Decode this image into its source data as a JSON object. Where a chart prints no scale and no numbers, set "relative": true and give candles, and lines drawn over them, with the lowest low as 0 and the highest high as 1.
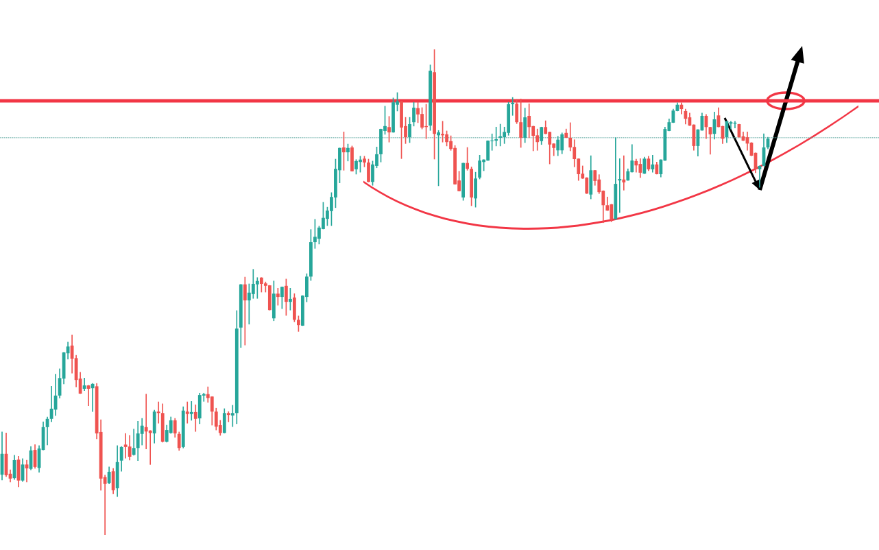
{
  "chart_data": {
    "type": "candlestick",
    "relative": true,
    "categories": [
      null,
      null,
      null,
      null,
      null,
      null,
      null,
      null,
      null,
      null,
      null,
      null,
      null,
      null,
      null,
      null,
      null,
      null,
      null,
      null,
      null,
      null,
      null,
      null,
      null,
      null,
      null,
      null,
      null,
      null,
      null,
      null,
      null,
      null,
      null,
      null,
      null,
      null,
      null,
      null,
      null,
      null,
      null,
      null,
      null,
      null,
      null,
      null,
      null,
      null,
      null,
      null,
      null,
      null,
      null,
      null,
      null,
      null,
      null,
      null,
      null,
      null,
      null,
      null,
      null,
      null,
      null,
      null,
      null,
      null,
      null,
      null,
      null,
      null,
      null,
      null,
      null,
      null,
      null,
      null,
      null,
      null,
      null,
      null,
      null,
      null,
      null,
      null,
      null,
      null,
      null,
      null,
      null,
      null,
      null,
      null,
      null,
      null,
      null,
      null,
      null,
      null,
      null,
      null,
      null,
      null,
      null,
      null,
      null,
      null,
      null,
      null,
      null,
      null,
      null,
      null,
      null,
      null,
      null,
      null,
      null,
      null,
      null,
      null,
      null,
      null,
      null,
      null,
      null,
      null,
      null,
      null,
      null,
      null,
      null,
      null,
      null,
      null,
      null,
      null,
      null,
      null,
      null,
      null,
      null,
      null,
      null,
      null,
      null,
      null,
      null,
      null,
      null,
      null,
      null,
      null,
      null,
      null,
      null,
      null,
      null,
      null,
      null,
      null,
      null,
      null,
      null,
      null,
      null,
      null,
      null,
      null,
      null,
      null,
      null,
      null,
      null,
      null,
      null,
      null,
      null,
      null,
      null,
      null,
      null,
      null,
      null
    ],
    "ohlc": [
      [
        0.124,
        0.212,
        0.113,
        0.167
      ],
      [
        0.167,
        0.21,
        0.12,
        0.123
      ],
      [
        0.126,
        0.134,
        0.109,
        0.116
      ],
      [
        0.117,
        0.164,
        0.114,
        0.154
      ],
      [
        0.155,
        0.162,
        0.099,
        0.112
      ],
      [
        0.112,
        0.157,
        0.11,
        0.145
      ],
      [
        0.145,
        0.154,
        0.109,
        0.137
      ],
      [
        0.136,
        0.182,
        0.134,
        0.174
      ],
      [
        0.175,
        0.186,
        0.137,
        0.14
      ],
      [
        0.138,
        0.184,
        0.129,
        0.178
      ],
      [
        0.175,
        0.233,
        0.175,
        0.222
      ],
      [
        0.222,
        0.243,
        0.185,
        0.239
      ],
      [
        0.239,
        0.306,
        0.233,
        0.26
      ],
      [
        0.258,
        0.331,
        0.246,
        0.287
      ],
      [
        0.287,
        0.342,
        0.282,
        0.323
      ],
      [
        0.322,
        0.376,
        0.311,
        0.376
      ],
      [
        0.374,
        0.397,
        0.362,
        0.388
      ],
      [
        0.39,
        0.412,
        0.333,
        0.363
      ],
      [
        0.364,
        0.37,
        0.305,
        0.319
      ],
      [
        0.322,
        0.335,
        0.291,
        0.291
      ],
      [
        0.301,
        0.323,
        0.297,
        0.308
      ],
      [
        0.308,
        0.308,
        0.266,
        0.301
      ],
      [
        0.302,
        0.312,
        0.254,
        0.311
      ],
      [
        0.306,
        0.312,
        0.198,
        0.209
      ],
      [
        0.212,
        0.237,
        0.092,
        0.116
      ],
      [
        0.119,
        0.123,
        0,
        0.105
      ],
      [
        0.107,
        0.14,
        0.105,
        0.13
      ],
      [
        0.131,
        0.137,
        0.085,
        0.092
      ],
      [
        0.096,
        0.184,
        0.079,
        0.15
      ],
      [
        0.153,
        0.182,
        0.131,
        0.181
      ],
      [
        0.186,
        0.209,
        0.158,
        0.181
      ],
      [
        0.182,
        0.205,
        0.154,
        0.161
      ],
      [
        0.165,
        0.218,
        0.164,
        0.179
      ],
      [
        0.179,
        0.234,
        0.153,
        0.209
      ],
      [
        0.208,
        0.24,
        0.185,
        0.225
      ],
      [
        0.222,
        0.29,
        0.177,
        0.213
      ],
      [
        0.215,
        0.215,
        0.145,
        0.21
      ],
      [
        0.209,
        0.257,
        0.189,
        0.254
      ],
      [
        0.254,
        0.274,
        0.23,
        0.251
      ],
      [
        0.251,
        0.27,
        0.191,
        0.192
      ],
      [
        0.192,
        0.226,
        0.191,
        0.216
      ],
      [
        0.21,
        0.243,
        0.209,
        0.236
      ],
      [
        0.236,
        0.24,
        0.201,
        0.209
      ],
      [
        0.208,
        0.212,
        0.174,
        0.179
      ],
      [
        0.181,
        0.264,
        0.179,
        0.256
      ],
      [
        0.254,
        0.274,
        0.23,
        0.249
      ],
      [
        0.249,
        0.275,
        0.236,
        0.253
      ],
      [
        0.253,
        0.268,
        0.213,
        0.239
      ],
      [
        0.24,
        0.292,
        0.229,
        0.288
      ],
      [
        0.287,
        0.292,
        0.275,
        0.29
      ],
      [
        0.29,
        0.305,
        0.273,
        0.282
      ],
      [
        0.285,
        0.285,
        0.226,
        0.254
      ],
      [
        0.254,
        0.261,
        0.216,
        0.223
      ],
      [
        0.226,
        0.236,
        0.205,
        0.21
      ],
      [
        0.21,
        0.26,
        0.21,
        0.251
      ],
      [
        0.251,
        0.254,
        0.233,
        0.247
      ],
      [
        0.246,
        0.267,
        0.223,
        0.251
      ],
      [
        0.251,
        0.462,
        0.229,
        0.425
      ],
      [
        0.427,
        0.516,
        0.386,
        0.516
      ],
      [
        0.516,
        0.531,
        0.391,
        0.483
      ],
      [
        0.483,
        0.517,
        0.434,
        0.499
      ],
      [
        0.496,
        0.547,
        0.487,
        0.517
      ],
      [
        0.516,
        0.53,
        0.487,
        0.523
      ],
      [
        0.53,
        0.53,
        0.5,
        0.517
      ],
      [
        0.518,
        0.521,
        0.5,
        0.513
      ],
      [
        0.514,
        0.514,
        0.463,
        0.463
      ],
      [
        0.446,
        0.523,
        0.441,
        0.497
      ],
      [
        0.497,
        0.508,
        0.473,
        0.49
      ],
      [
        0.49,
        0.511,
        0.466,
        0.511
      ],
      [
        0.513,
        0.527,
        0.452,
        0.48
      ],
      [
        0.48,
        0.508,
        0.463,
        0.486
      ],
      [
        0.489,
        0.497,
        0.439,
        0.443
      ],
      [
        0.443,
        0.451,
        0.419,
        0.432
      ],
      [
        0.431,
        0.493,
        0.431,
        0.493
      ],
      [
        0.49,
        0.538,
        0.48,
        0.532
      ],
      [
        0.532,
        0.629,
        0.524,
        0.603
      ],
      [
        0.603,
        0.65,
        0.59,
        0.614
      ],
      [
        0.61,
        0.636,
        0.599,
        0.633
      ],
      [
        0.63,
        0.685,
        0.63,
        0.653
      ],
      [
        0.651,
        0.675,
        0.637,
        0.668
      ],
      [
        0.667,
        0.705,
        0.637,
        0.696
      ],
      [
        0.695,
        0.774,
        0.674,
        0.754
      ],
      [
        0.751,
        0.797,
        0.725,
        0.797
      ],
      [
        0.798,
        0.83,
        0.751,
        0.788
      ],
      [
        0.788,
        0.805,
        0.77,
        0.797
      ],
      [
        0.798,
        0.801,
        0.749,
        0.749
      ],
      [
        0.753,
        0.773,
        0.743,
        0.77
      ],
      [
        0.768,
        0.78,
        0.747,
        0.773
      ],
      [
        0.775,
        0.78,
        0.758,
        0.767
      ],
      [
        0.767,
        0.774,
        0.727,
        0.727
      ],
      [
        0.727,
        0.77,
        0.72,
        0.763
      ],
      [
        0.76,
        0.799,
        0.756,
        0.784
      ],
      [
        0.784,
        0.836,
        0.768,
        0.836
      ],
      [
        0.832,
        0.883,
        0.825,
        0.842
      ],
      [
        0.84,
        0.862,
        0.809,
        0.829
      ],
      [
        0.829,
        0.9,
        0.829,
        0.891
      ],
      [
        0.886,
        0.911,
        0.873,
        0.893
      ],
      [
        0.893,
        0.893,
        0.775,
        0.839
      ],
      [
        0.842,
        0.86,
        0.806,
        0.819
      ],
      [
        0.819,
        0.86,
        0.808,
        0.846
      ],
      [
        0.85,
        0.891,
        0.842,
        0.88
      ],
      [
        0.879,
        0.891,
        0.849,
        0.866
      ],
      [
        0.867,
        0.88,
        0.836,
        0.839
      ],
      [
        0.842,
        0.887,
        0.816,
        0.84
      ],
      [
        0.843,
        0.968,
        0.833,
        0.956
      ],
      [
        0.953,
        1,
        0.774,
        0.826
      ],
      [
        0.823,
        0.833,
        0.719,
        0.829
      ],
      [
        0.826,
        0.852,
        0.809,
        0.823
      ],
      [
        0.825,
        0.832,
        0.801,
        0.809
      ],
      [
        0.811,
        0.822,
        0.792,
        0.795
      ],
      [
        0.797,
        0.802,
        0.722,
        0.722
      ],
      [
        0.73,
        0.749,
        0.708,
        0.708
      ],
      [
        0.695,
        0.766,
        0.689,
        0.766
      ],
      [
        0.766,
        0.798,
        0.751,
        0.754
      ],
      [
        0.754,
        0.758,
        0.678,
        0.695
      ],
      [
        0.693,
        0.747,
        0.675,
        0.734
      ],
      [
        0.736,
        0.782,
        0.733,
        0.771
      ],
      [
        0.768,
        0.773,
        0.75,
        0.773
      ],
      [
        0.771,
        0.812,
        0.771,
        0.812
      ],
      [
        0.811,
        0.826,
        0.792,
        0.812
      ],
      [
        0.812,
        0.84,
        0.801,
        0.815
      ],
      [
        0.818,
        0.846,
        0.801,
        0.821
      ],
      [
        0.819,
        0.84,
        0.806,
        0.83
      ],
      [
        0.828,
        0.891,
        0.823,
        0.887
      ],
      [
        0.887,
        0.901,
        0.864,
        0.89
      ],
      [
        0.888,
        0.897,
        0.847,
        0.85
      ],
      [
        0.85,
        0.898,
        0.798,
        0.818
      ],
      [
        0.818,
        0.879,
        0.808,
        0.86
      ],
      [
        0.863,
        0.888,
        0.818,
        0.84
      ],
      [
        0.842,
        0.842,
        0.791,
        0.822
      ],
      [
        0.823,
        0.836,
        0.792,
        0.809
      ],
      [
        0.811,
        0.84,
        0.804,
        0.84
      ],
      [
        0.84,
        0.853,
        0.826,
        0.826
      ],
      [
        0.83,
        0.83,
        0.764,
        0.804
      ],
      [
        0.806,
        0.806,
        0.781,
        0.797
      ],
      [
        0.792,
        0.821,
        0.781,
        0.814
      ],
      [
        0.792,
        0.828,
        0.785,
        0.825
      ],
      [
        0.828,
        0.836,
        0.818,
        0.818
      ],
      [
        0.818,
        0.849,
        0.791,
        0.798
      ],
      [
        0.799,
        0.814,
        0.758,
        0.774
      ],
      [
        0.775,
        0.775,
        0.73,
        0.743
      ],
      [
        0.744,
        0.76,
        0.734,
        0.734
      ],
      [
        0.736,
        0.736,
        0.703,
        0.703
      ],
      [
        0.701,
        0.781,
        0.692,
        0.751
      ],
      [
        0.751,
        0.751,
        0.72,
        0.729
      ],
      [
        0.732,
        0.742,
        0.703,
        0.706
      ],
      [
        0.709,
        0.709,
        0.643,
        0.679
      ],
      [
        0.679,
        0.696,
        0.668,
        0.668
      ],
      [
        0.681,
        0.681,
        0.645,
        0.65
      ],
      [
        0.65,
        0.818,
        0.65,
        0.723
      ],
      [
        0.73,
        0.775,
        0.664,
        0.733
      ],
      [
        0.732,
        0.781,
        0.71,
        0.726
      ],
      [
        0.73,
        0.754,
        0.73,
        0.749
      ],
      [
        0.747,
        0.804,
        0.747,
        0.771
      ],
      [
        0.77,
        0.774,
        0.747,
        0.761
      ],
      [
        0.764,
        0.775,
        0.736,
        0.746
      ],
      [
        0.744,
        0.778,
        0.744,
        0.775
      ],
      [
        0.775,
        0.78,
        0.75,
        0.753
      ],
      [
        0.753,
        0.782,
        0.747,
        0.763
      ],
      [
        0.763,
        0.768,
        0.743,
        0.743
      ],
      [
        0.743,
        0.773,
        0.737,
        0.773
      ],
      [
        0.771,
        0.84,
        0.771,
        0.836
      ],
      [
        0.832,
        0.857,
        0.832,
        0.85
      ],
      [
        0.849,
        0.877,
        0.849,
        0.874
      ],
      [
        0.873,
        0.89,
        0.873,
        0.886
      ],
      [
        0.886,
        0.89,
        0.867,
        0.877
      ],
      [
        0.873,
        0.877,
        0.846,
        0.857
      ],
      [
        0.86,
        0.869,
        0.843,
        0.843
      ],
      [
        0.845,
        0.845,
        0.792,
        0.801
      ],
      [
        0.801,
        0.835,
        0.78,
        0.835
      ],
      [
        0.833,
        0.869,
        0.833,
        0.863
      ],
      [
        0.863,
        0.866,
        0.816,
        0.84
      ],
      [
        0.84,
        0.84,
        0.784,
        0.825
      ],
      [
        0.826,
        0.871,
        0.815,
        0.856
      ],
      [
        0.864,
        0.88,
        0.84,
        0.84
      ],
      [
        0.842,
        0.842,
        0.806,
        0.816
      ],
      [
        0.819,
        0.852,
        0.808,
        0.852
      ],
      [
        0.847,
        0.852,
        0.836,
        0.85
      ],
      [
        0.847,
        0.852,
        0.838,
        0.849
      ],
      [
        0.846,
        0.846,
        0.819,
        0.819
      ],
      [
        0.821,
        0.83,
        0.812,
        0.812
      ],
      [
        0.819,
        0.83,
        0.792,
        0.806
      ],
      [
        0.808,
        0.808,
        0.781,
        0.781
      ],
      [
        0.787,
        0.787,
        0.746,
        0.753
      ],
      [
        0.753,
        0.76,
        0.716,
        0.76
      ],
      [
        0.76,
        0.826,
        0.76,
        0.798
      ],
      [
        0.798,
        0.819,
        0.795,
        0.816
      ]
    ],
    "ref_lines": [
      {
        "axis": "y",
        "value": 0.894,
        "color": "#f23645"
      },
      {
        "axis": "y",
        "value": 0.818,
        "color": "#5fa8a0",
        "line_style": "dotted"
      }
    ]
  }
}
